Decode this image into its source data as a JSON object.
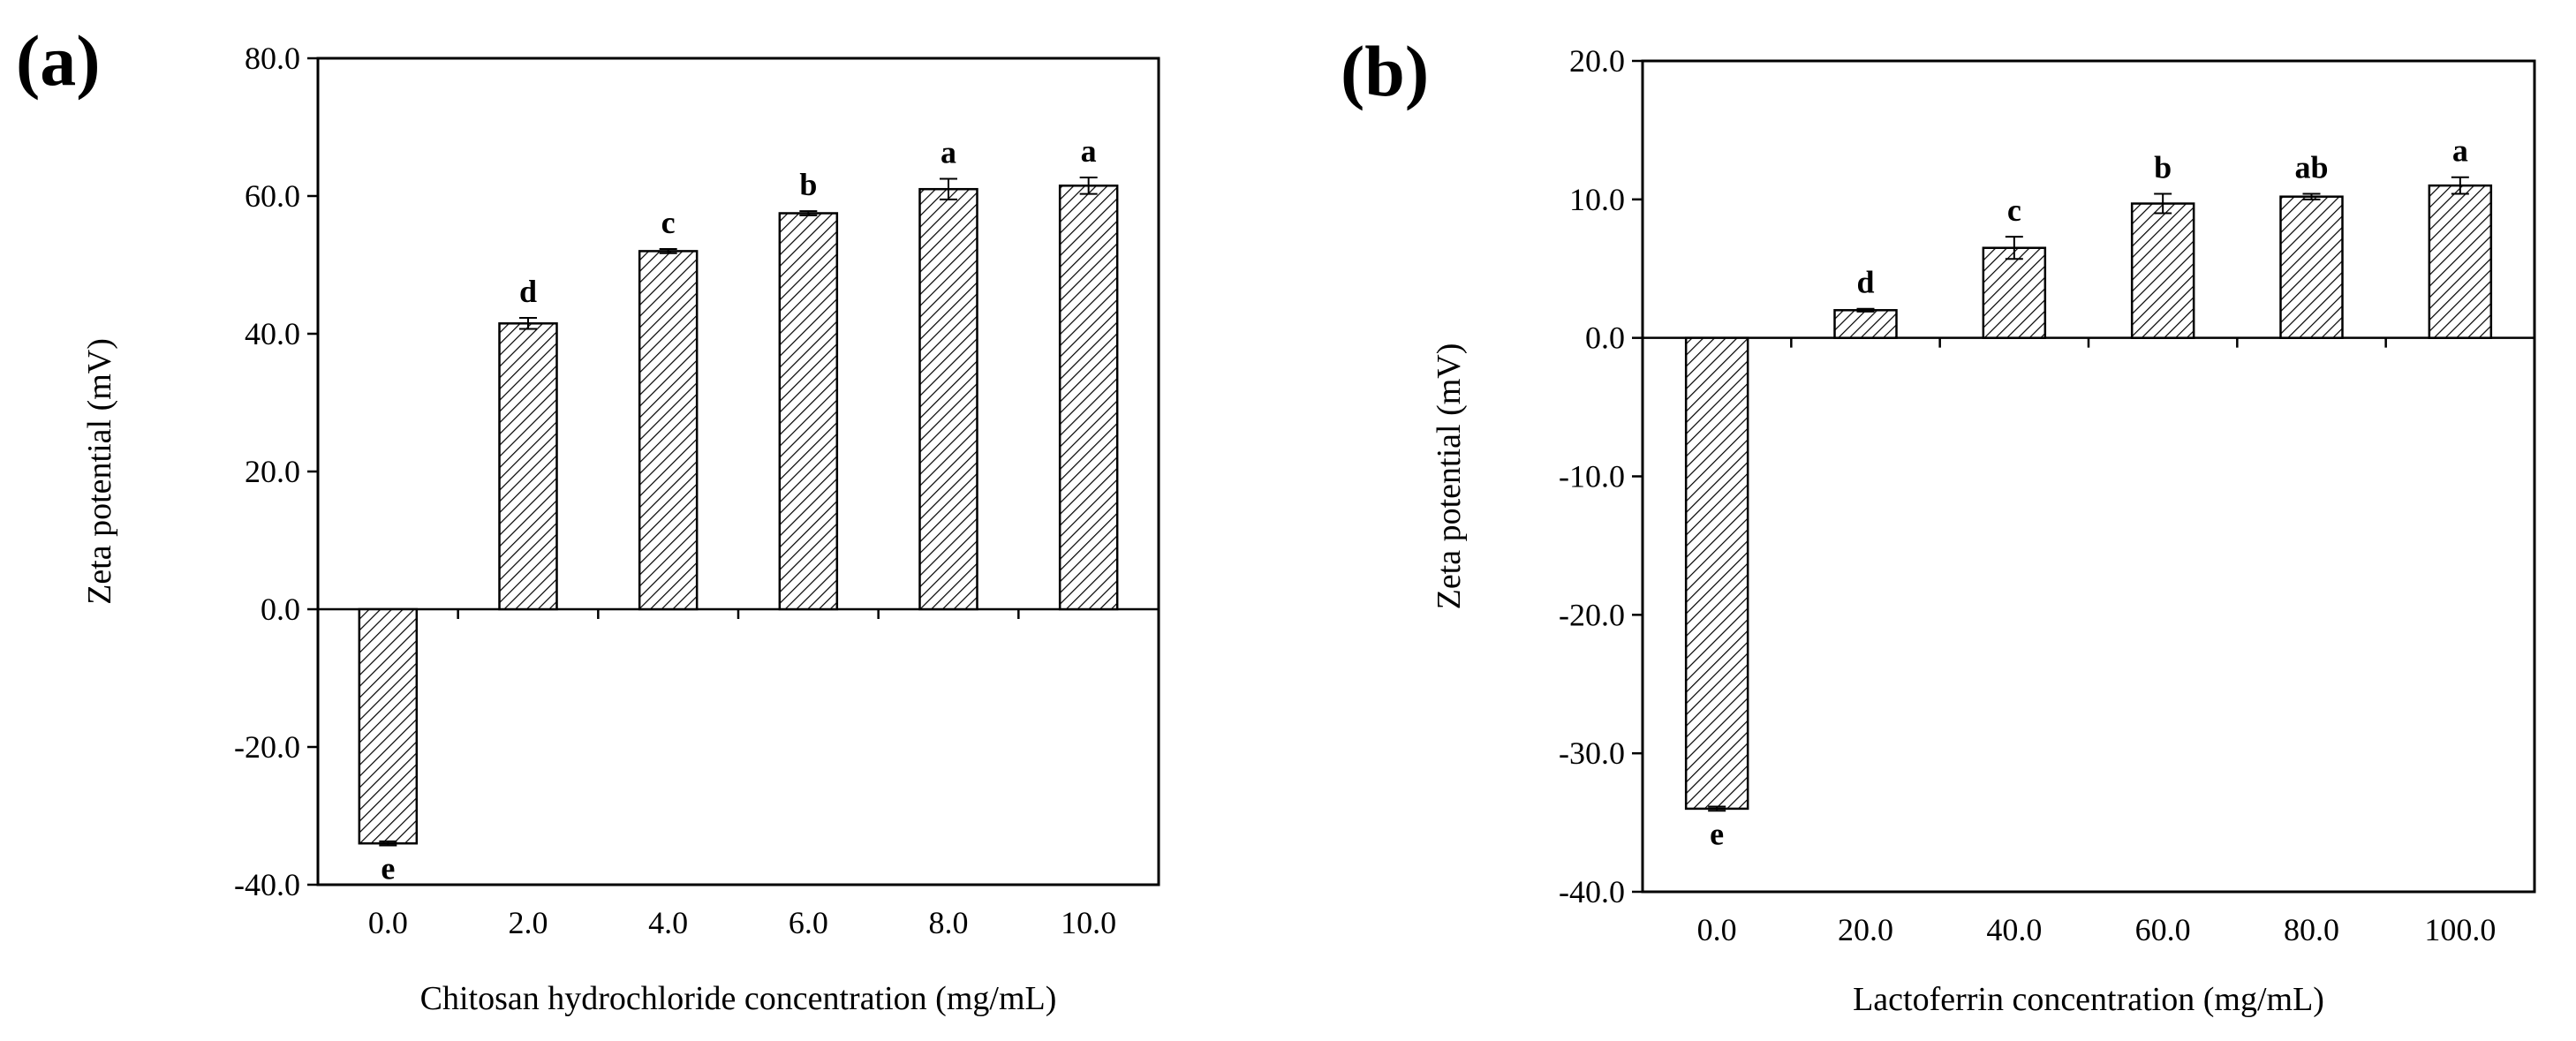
{
  "chart_data": [
    {
      "type": "bar",
      "panel_label": "(a)",
      "title": "",
      "xlabel": "Chitosan hydrochloride concentration (mg/mL)",
      "ylabel": "Zeta potential (mV)",
      "ylim": [
        -40,
        80
      ],
      "yticks": [
        -40,
        -20,
        0,
        20,
        40,
        60,
        80
      ],
      "ytick_labels": [
        "-40.0",
        "-20.0",
        "0.0",
        "20.0",
        "40.0",
        "60.0",
        "80.0"
      ],
      "categories": [
        "0.0",
        "2.0",
        "4.0",
        "6.0",
        "8.0",
        "10.0"
      ],
      "values": [
        -34.0,
        41.5,
        52.0,
        57.5,
        61.0,
        61.5
      ],
      "errors": [
        0.3,
        0.8,
        0.3,
        0.3,
        1.5,
        1.2
      ],
      "significance_letters": [
        "e",
        "d",
        "c",
        "b",
        "a",
        "a"
      ],
      "bar_fill": "diagonal-hatch",
      "grid": false,
      "legend": "none"
    },
    {
      "type": "bar",
      "panel_label": "(b)",
      "title": "",
      "xlabel": "Lactoferrin concentration (mg/mL)",
      "ylabel": "Zeta potential (mV)",
      "ylim": [
        -40,
        20
      ],
      "yticks": [
        -40,
        -30,
        -20,
        -10,
        0,
        10,
        20
      ],
      "ytick_labels": [
        "-40.0",
        "-30.0",
        "-20.0",
        "-10.0",
        "0.0",
        "10.0",
        "20.0"
      ],
      "categories": [
        "0.0",
        "20.0",
        "40.0",
        "60.0",
        "80.0",
        "100.0"
      ],
      "values": [
        -34.0,
        2.0,
        6.5,
        9.7,
        10.2,
        11.0
      ],
      "errors": [
        0.15,
        0.1,
        0.8,
        0.7,
        0.2,
        0.6
      ],
      "significance_letters": [
        "e",
        "d",
        "c",
        "b",
        "ab",
        "a"
      ],
      "bar_fill": "diagonal-hatch",
      "grid": false,
      "legend": "none"
    }
  ],
  "colors": {
    "axis": "#000000",
    "bar_fill": "#ffffff",
    "hatch": "#000000"
  }
}
